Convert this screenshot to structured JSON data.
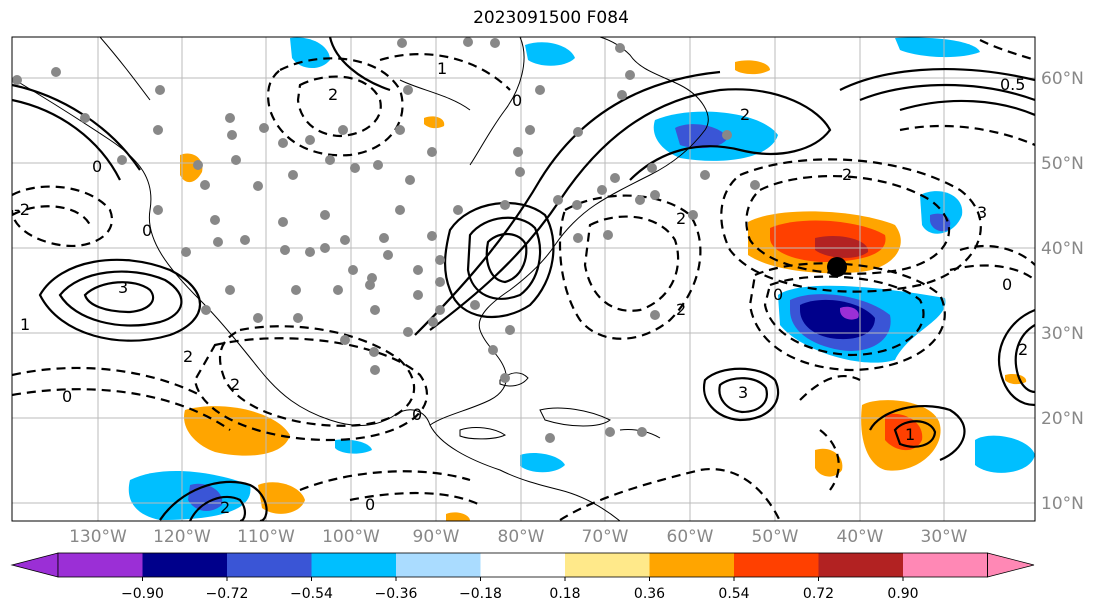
{
  "title": "2023091500 F084",
  "map": {
    "lon_labels": [
      "130°W",
      "120°W",
      "110°W",
      "100°W",
      "90°W",
      "80°W",
      "70°W",
      "60°W",
      "50°W",
      "40°W",
      "30°W"
    ],
    "lat_labels": [
      "60°N",
      "50°N",
      "40°N",
      "30°N",
      "20°N",
      "10°N"
    ],
    "contour_labels": [
      "0",
      "1",
      "2",
      "3",
      "-2",
      "-3",
      "0.5",
      "-1"
    ],
    "marker": "storm-center-dot"
  },
  "colorbar": {
    "tick_labels": [
      "−0.90",
      "−0.72",
      "−0.54",
      "−0.36",
      "−0.18",
      "0.18",
      "0.36",
      "0.54",
      "0.72",
      "0.90"
    ],
    "colors": [
      "#9b2fd6",
      "#00008b",
      "#3a55d6",
      "#00bfff",
      "#aadcff",
      "#ffffff",
      "#ffe98a",
      "#ffa500",
      "#ff4000",
      "#b22222",
      "#ff88b5"
    ]
  }
}
